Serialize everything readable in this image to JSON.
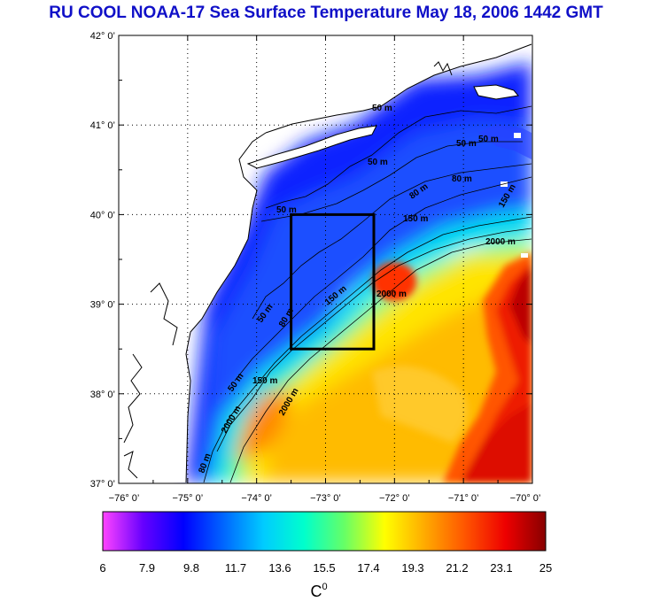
{
  "title": "RU COOL  NOAA-17 Sea Surface Temperature May 18, 2006 1442 GMT",
  "map": {
    "lat_labels": [
      "42° 0’",
      "41° 0’",
      "40° 0’",
      "39° 0’",
      "38° 0’",
      "37° 0’"
    ],
    "lon_labels": [
      "−76° 0’",
      "−75° 0’",
      "−74° 0’",
      "−73° 0’",
      "−72° 0’",
      "−71° 0’",
      "−70° 0’"
    ],
    "lat_range": [
      37,
      42
    ],
    "lon_range": [
      -76,
      -70
    ],
    "study_box": {
      "lon_min": -73.5,
      "lon_max": -72.3,
      "lat_min": 38.5,
      "lat_max": 40.0
    },
    "contour_labels": [
      "50 m",
      "50 m",
      "50 m",
      "50 m",
      "50 m",
      "50 m",
      "80 m",
      "80 m",
      "80 m",
      "150 m",
      "150 m",
      "150 m",
      "2000 m",
      "2000 m",
      "2000 m",
      "50 m",
      "80 m",
      "150 m",
      "2000 m"
    ],
    "colors": {
      "land": "#ffffff",
      "coast": "#000000",
      "box": "#000000",
      "grid": "#000000"
    }
  },
  "colorbar": {
    "ticks": [
      "6",
      "7.9",
      "9.8",
      "11.7",
      "13.6",
      "15.5",
      "17.4",
      "19.3",
      "21.2",
      "23.1",
      "25"
    ],
    "min": 6,
    "max": 25,
    "unit": "C",
    "unit_superscript": "0",
    "colors": [
      "#ff44ff",
      "#6600ff",
      "#0000ff",
      "#0066ff",
      "#00ccff",
      "#00ffcc",
      "#66ff66",
      "#ffff00",
      "#ffaa00",
      "#ff5500",
      "#ee0000",
      "#880000"
    ]
  }
}
